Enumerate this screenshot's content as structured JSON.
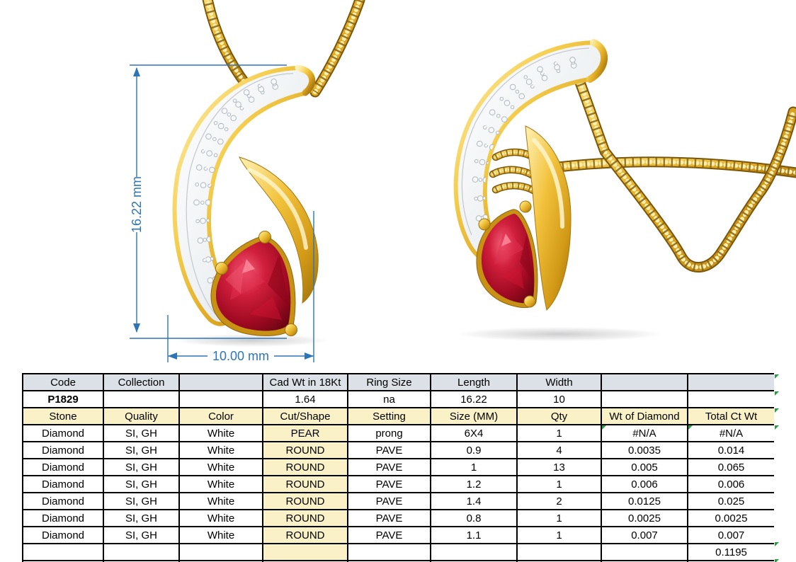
{
  "drawing": {
    "dimensions": {
      "height_label": "16.22 mm",
      "width_label": "10.00 mm",
      "line_color": "#2E75B6"
    },
    "colors": {
      "gold": "#E2A92A",
      "gold_dark": "#8F6510",
      "gold_light": "#FFF0B0",
      "ruby": "#B5081F",
      "ruby_dark": "#70040F",
      "metal_white": "#F2F4F6"
    }
  },
  "table": {
    "header_row": [
      "Code",
      "Collection",
      "",
      "Cad Wt in 18Kt",
      "Ring Size",
      "Length",
      "Width",
      "",
      ""
    ],
    "info_row": [
      "P1829",
      "",
      "",
      "1.64",
      "na",
      "16.22",
      "10",
      "",
      ""
    ],
    "stone_header_row": [
      "Stone",
      "Quality",
      "Color",
      "Cut/Shape",
      "Setting",
      "Size (MM)",
      "Qty",
      "Wt of Diamond",
      "Total Ct Wt"
    ],
    "stone_rows": [
      [
        "Diamond",
        "SI, GH",
        "White",
        "PEAR",
        "prong",
        "6X4",
        "1",
        "#N/A",
        "#N/A"
      ],
      [
        "Diamond",
        "SI, GH",
        "White",
        "ROUND",
        "PAVE",
        "0.9",
        "4",
        "0.0035",
        "0.014"
      ],
      [
        "Diamond",
        "SI, GH",
        "White",
        "ROUND",
        "PAVE",
        "1",
        "13",
        "0.005",
        "0.065"
      ],
      [
        "Diamond",
        "SI, GH",
        "White",
        "ROUND",
        "PAVE",
        "1.2",
        "1",
        "0.006",
        "0.006"
      ],
      [
        "Diamond",
        "SI, GH",
        "White",
        "ROUND",
        "PAVE",
        "1.4",
        "2",
        "0.0125",
        "0.025"
      ],
      [
        "Diamond",
        "SI, GH",
        "White",
        "ROUND",
        "PAVE",
        "0.8",
        "1",
        "0.0025",
        "0.0025"
      ],
      [
        "Diamond",
        "SI, GH",
        "White",
        "ROUND",
        "PAVE",
        "1.1",
        "1",
        "0.007",
        "0.007"
      ]
    ],
    "total_row": [
      "",
      "",
      "",
      "",
      "",
      "",
      "",
      "",
      "0.1195"
    ],
    "colors": {
      "header_bg": "#DBE1E6",
      "accent_bg": "#FBF1C7",
      "border": "#000000",
      "error_indicator": "#2C9C44"
    }
  }
}
